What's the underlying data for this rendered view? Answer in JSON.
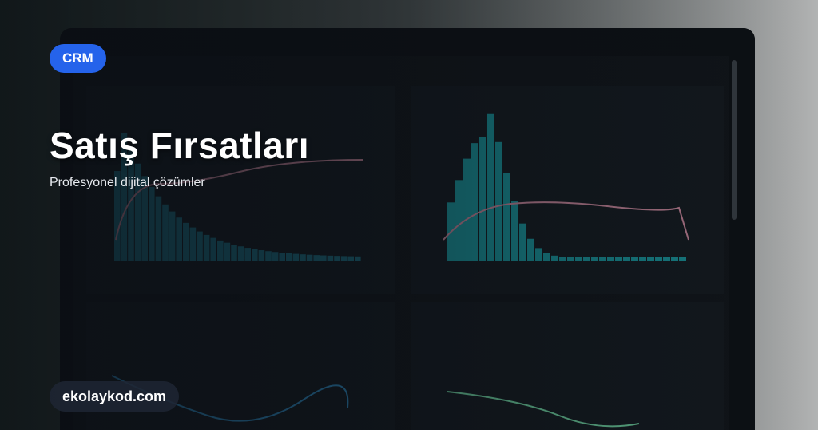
{
  "badge": "CRM",
  "header": {
    "title": "Satış Fırsatları",
    "subtitle": "Profesyonel dijital çözümler"
  },
  "footer": {
    "site": "ekolaykod.com"
  }
}
